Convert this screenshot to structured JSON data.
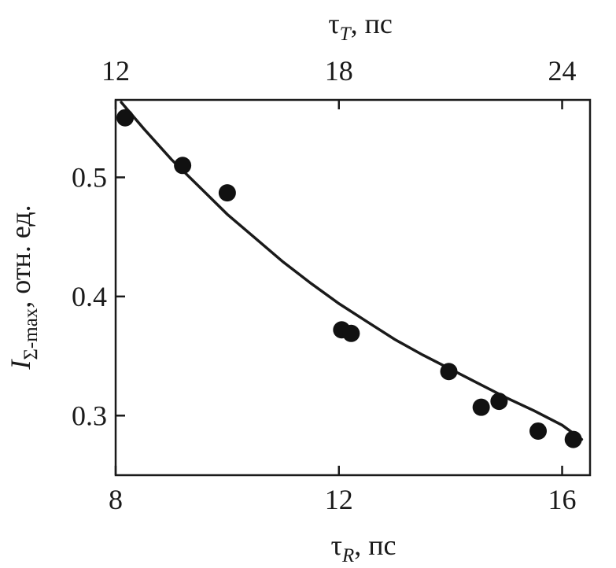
{
  "chart_data": {
    "type": "scatter",
    "title": "",
    "xlabel": {
      "symbol": "τ",
      "subscript": "R",
      "unit": ", пс"
    },
    "x2label": {
      "symbol": "τ",
      "subscript": "T",
      "unit": ", пс"
    },
    "ylabel": {
      "symbol": "I",
      "subscript": "Σ-max",
      "unit": ", отн. ед."
    },
    "xlim": [
      8,
      16.5
    ],
    "x2lim": [
      12,
      24.75
    ],
    "ylim": [
      0.25,
      0.565
    ],
    "xticks": [
      "8",
      "12",
      "16"
    ],
    "x2ticks": [
      "12",
      "18",
      "24"
    ],
    "yticks": [
      "0.3",
      "0.4",
      "0.5"
    ],
    "points": {
      "x": [
        8.17,
        9.2,
        10.0,
        12.05,
        12.22,
        13.97,
        14.55,
        14.87,
        15.57,
        16.2
      ],
      "y": [
        0.55,
        0.51,
        0.487,
        0.372,
        0.369,
        0.337,
        0.307,
        0.312,
        0.287,
        0.28
      ]
    },
    "fit_curve": {
      "x": [
        8.1,
        8.5,
        9.0,
        9.5,
        10.0,
        10.5,
        11.0,
        11.5,
        12.0,
        12.5,
        13.0,
        13.5,
        14.0,
        14.5,
        15.0,
        15.5,
        16.0,
        16.35
      ],
      "y": [
        0.563,
        0.541,
        0.515,
        0.492,
        0.469,
        0.449,
        0.429,
        0.411,
        0.394,
        0.379,
        0.364,
        0.351,
        0.339,
        0.327,
        0.315,
        0.304,
        0.292,
        0.28
      ]
    },
    "grid": false,
    "legend": "none"
  }
}
